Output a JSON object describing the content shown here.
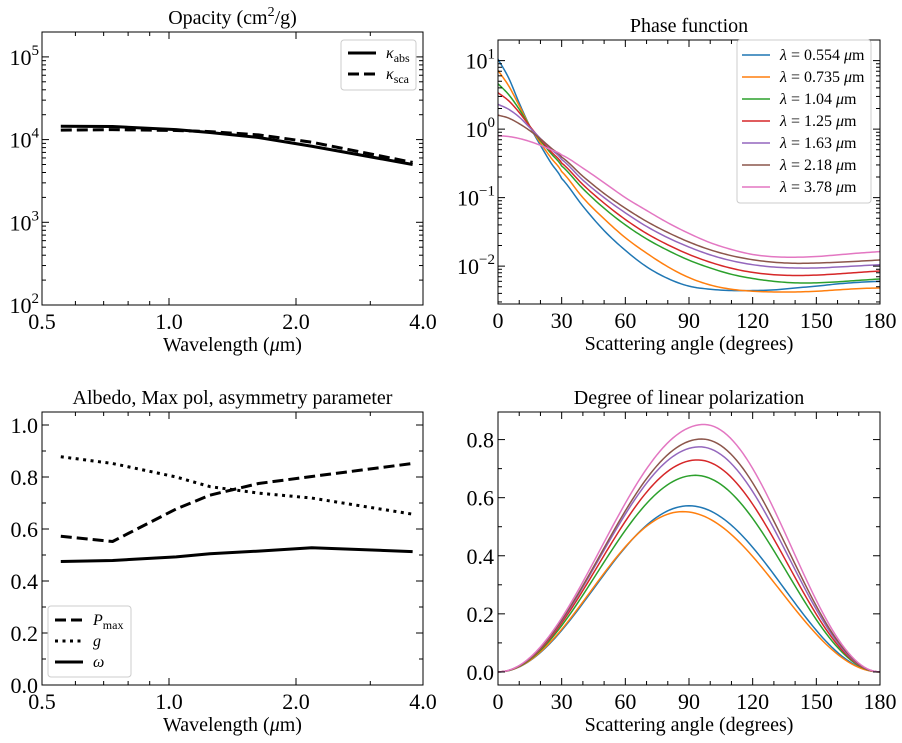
{
  "chart_data": [
    {
      "type": "line",
      "title": "Opacity (cm²/g)",
      "xlabel": "Wavelength (μm)",
      "ylabel": "",
      "xscale": "log",
      "yscale": "log",
      "xlim": [
        0.5,
        4.0
      ],
      "ylim": [
        100,
        200000
      ],
      "xticks": [
        0.5,
        1.0,
        2.0,
        4.0
      ],
      "xtick_labels": [
        "0.5",
        "1.0",
        "2.0",
        "4.0"
      ],
      "yticks": [
        100,
        1000,
        10000,
        100000
      ],
      "ytick_labels": [
        [
          "10",
          "2"
        ],
        [
          "10",
          "3"
        ],
        [
          "10",
          "4"
        ],
        [
          "10",
          "5"
        ]
      ],
      "grid": false,
      "legend_position": "top-right",
      "x": [
        0.554,
        0.735,
        1.04,
        1.25,
        1.63,
        2.18,
        3.78
      ],
      "series": [
        {
          "name": "κ",
          "sub": "abs",
          "color": "#000000",
          "dash": "solid",
          "values": [
            14500,
            14400,
            13200,
            12200,
            10600,
            8300,
            5000
          ]
        },
        {
          "name": "κ",
          "sub": "sca",
          "color": "#000000",
          "dash": "dashed",
          "values": [
            13000,
            13200,
            12900,
            12500,
            11400,
            9300,
            5300
          ]
        }
      ]
    },
    {
      "type": "line",
      "title": "Phase function",
      "xlabel": "Scattering angle (degrees)",
      "ylabel": "",
      "xscale": "linear",
      "yscale": "log",
      "xlim": [
        0,
        180
      ],
      "ylim": [
        0.0028,
        20
      ],
      "xticks": [
        0,
        30,
        60,
        90,
        120,
        150,
        180
      ],
      "xtick_labels": [
        "0",
        "30",
        "60",
        "90",
        "120",
        "150",
        "180"
      ],
      "yticks": [
        0.01,
        0.1,
        1,
        10
      ],
      "ytick_labels": [
        [
          "10",
          "−2"
        ],
        [
          "10",
          "−1"
        ],
        [
          "10",
          "0"
        ],
        [
          "10",
          "1"
        ]
      ],
      "grid": false,
      "legend_position": "top-right",
      "x": [
        0,
        5,
        10,
        15,
        20,
        25,
        30,
        40,
        50,
        60,
        70,
        80,
        90,
        100,
        110,
        120,
        130,
        140,
        150,
        160,
        170,
        180
      ],
      "series": [
        {
          "name": "λ = 0.554 μm",
          "color": "#1f77b4",
          "values": [
            10.5,
            5.6,
            2.4,
            1.1,
            0.58,
            0.32,
            0.19,
            0.075,
            0.033,
            0.017,
            0.0098,
            0.0066,
            0.0051,
            0.0046,
            0.0044,
            0.0044,
            0.0045,
            0.0048,
            0.0051,
            0.0055,
            0.0058,
            0.006
          ]
        },
        {
          "name": "λ = 0.735 μm",
          "color": "#ff7f0e",
          "values": [
            7.2,
            4.3,
            2.2,
            1.1,
            0.63,
            0.38,
            0.24,
            0.1,
            0.049,
            0.026,
            0.0155,
            0.0098,
            0.0068,
            0.0053,
            0.0046,
            0.0043,
            0.0042,
            0.0042,
            0.0043,
            0.0045,
            0.0047,
            0.0048
          ]
        },
        {
          "name": "λ = 1.04 μm",
          "color": "#2ca02c",
          "values": [
            4.6,
            3.2,
            1.95,
            1.1,
            0.68,
            0.44,
            0.29,
            0.135,
            0.07,
            0.04,
            0.025,
            0.017,
            0.0122,
            0.0094,
            0.0076,
            0.0066,
            0.006,
            0.0057,
            0.0057,
            0.0059,
            0.0062,
            0.0065
          ]
        },
        {
          "name": "λ = 1.25 μm",
          "color": "#d62728",
          "values": [
            3.4,
            2.6,
            1.75,
            1.1,
            0.71,
            0.47,
            0.32,
            0.155,
            0.083,
            0.048,
            0.03,
            0.0205,
            0.0148,
            0.0114,
            0.0093,
            0.0081,
            0.0075,
            0.0073,
            0.0074,
            0.0077,
            0.0081,
            0.0085
          ]
        },
        {
          "name": "λ = 1.63 μm",
          "color": "#9467bd",
          "values": [
            2.3,
            1.95,
            1.5,
            1.05,
            0.73,
            0.51,
            0.36,
            0.18,
            0.1,
            0.06,
            0.038,
            0.026,
            0.019,
            0.0146,
            0.012,
            0.0105,
            0.0097,
            0.0094,
            0.0094,
            0.0097,
            0.0101,
            0.0105
          ]
        },
        {
          "name": "λ = 2.18 μm",
          "color": "#8c564b",
          "values": [
            1.6,
            1.45,
            1.2,
            0.95,
            0.72,
            0.53,
            0.39,
            0.205,
            0.115,
            0.07,
            0.045,
            0.031,
            0.0225,
            0.0173,
            0.0142,
            0.0124,
            0.0114,
            0.011,
            0.0111,
            0.0114,
            0.0118,
            0.0123
          ]
        },
        {
          "name": "λ = 3.78 μm",
          "color": "#e377c2",
          "values": [
            0.8,
            0.78,
            0.73,
            0.66,
            0.58,
            0.5,
            0.42,
            0.27,
            0.165,
            0.1,
            0.065,
            0.043,
            0.03,
            0.022,
            0.0175,
            0.0148,
            0.0137,
            0.0135,
            0.0138,
            0.0146,
            0.0155,
            0.0163
          ]
        }
      ]
    },
    {
      "type": "line",
      "title": "Albedo, Max pol, asymmetry parameter",
      "xlabel": "Wavelength (μm)",
      "ylabel": "",
      "xscale": "log",
      "yscale": "linear",
      "xlim": [
        0.5,
        4.0
      ],
      "ylim": [
        0,
        1.05
      ],
      "xticks": [
        0.5,
        1.0,
        2.0,
        4.0
      ],
      "xtick_labels": [
        "0.5",
        "1.0",
        "2.0",
        "4.0"
      ],
      "yticks": [
        0,
        0.2,
        0.4,
        0.6,
        0.8,
        1.0
      ],
      "ytick_labels": [
        "0.0",
        "0.2",
        "0.4",
        "0.6",
        "0.8",
        "1.0"
      ],
      "grid": false,
      "legend_position": "bottom-left",
      "x": [
        0.554,
        0.735,
        1.04,
        1.25,
        1.63,
        2.18,
        3.78
      ],
      "series": [
        {
          "name": "P",
          "sub": "max",
          "italic": true,
          "color": "#000000",
          "dash": "dashed",
          "values": [
            0.572,
            0.552,
            0.677,
            0.73,
            0.775,
            0.802,
            0.852
          ]
        },
        {
          "name": "g",
          "italic": true,
          "color": "#000000",
          "dash": "dotted",
          "values": [
            0.878,
            0.852,
            0.8,
            0.763,
            0.738,
            0.719,
            0.657
          ]
        },
        {
          "name": "ω",
          "italic": true,
          "color": "#000000",
          "dash": "solid",
          "values": [
            0.475,
            0.479,
            0.493,
            0.505,
            0.515,
            0.528,
            0.513
          ]
        }
      ]
    },
    {
      "type": "line",
      "title": "Degree of linear polarization",
      "xlabel": "Scattering angle (degrees)",
      "ylabel": "",
      "xscale": "linear",
      "yscale": "linear",
      "xlim": [
        0,
        180
      ],
      "ylim": [
        -0.045,
        0.895
      ],
      "xticks": [
        0,
        30,
        60,
        90,
        120,
        150,
        180
      ],
      "xtick_labels": [
        "0",
        "30",
        "60",
        "90",
        "120",
        "150",
        "180"
      ],
      "yticks": [
        0,
        0.2,
        0.4,
        0.6,
        0.8
      ],
      "ytick_labels": [
        "0.0",
        "0.2",
        "0.4",
        "0.6",
        "0.8"
      ],
      "grid": false,
      "legend_position": "none",
      "peaks": [
        {
          "name": "λ = 0.554 μm",
          "color": "#1f77b4",
          "peak": 0.572,
          "peak_angle": 90
        },
        {
          "name": "λ = 0.735 μm",
          "color": "#ff7f0e",
          "peak": 0.552,
          "peak_angle": 87
        },
        {
          "name": "λ = 1.04 μm",
          "color": "#2ca02c",
          "peak": 0.677,
          "peak_angle": 93
        },
        {
          "name": "λ = 1.25 μm",
          "color": "#d62728",
          "peak": 0.73,
          "peak_angle": 94
        },
        {
          "name": "λ = 1.63 μm",
          "color": "#9467bd",
          "peak": 0.775,
          "peak_angle": 95
        },
        {
          "name": "λ = 2.18 μm",
          "color": "#8c564b",
          "peak": 0.802,
          "peak_angle": 96
        },
        {
          "name": "λ = 3.78 μm",
          "color": "#e377c2",
          "peak": 0.852,
          "peak_angle": 97
        }
      ]
    }
  ]
}
